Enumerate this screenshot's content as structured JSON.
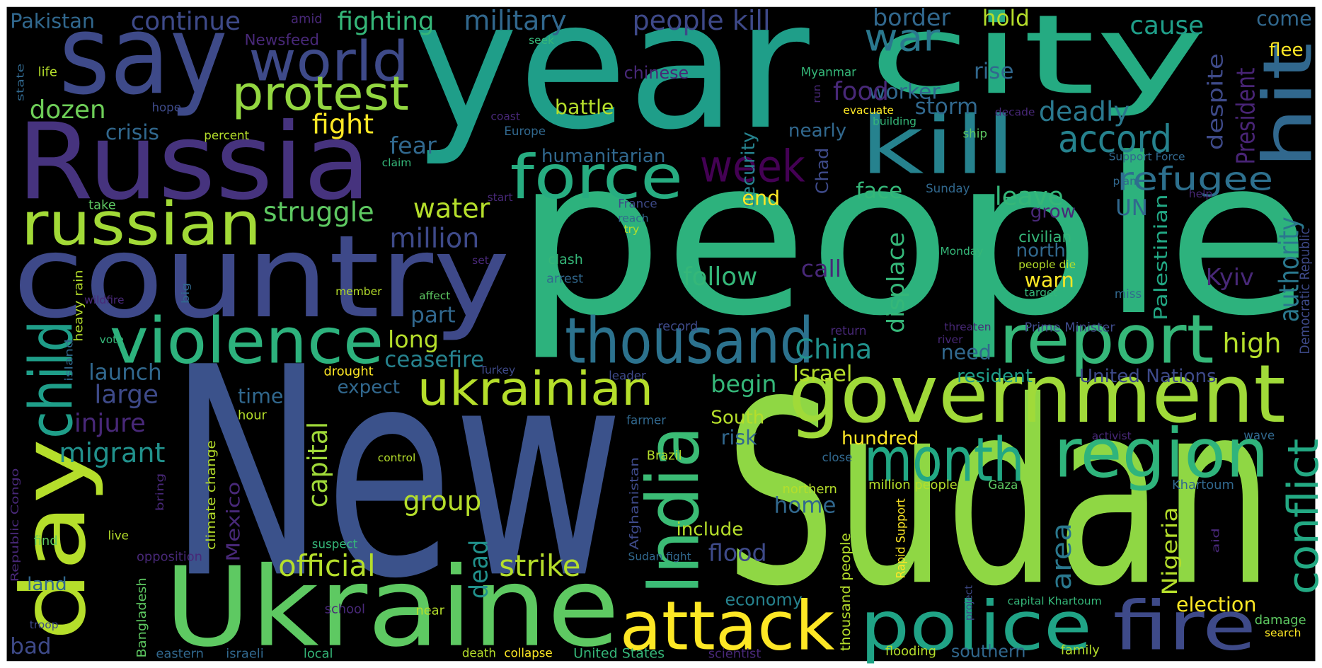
{
  "words": [
    {
      "text": "year",
      "color": "#1f9e89"
    },
    {
      "text": "people",
      "color": "#2db27d"
    },
    {
      "text": "New",
      "color": "#3b528b"
    },
    {
      "text": "Sudan",
      "color": "#8fd744"
    },
    {
      "text": "say",
      "color": "#3e4a89"
    },
    {
      "text": "city",
      "color": "#25ab82"
    },
    {
      "text": "Russia",
      "color": "#46337e"
    },
    {
      "text": "country",
      "color": "#3e4989"
    },
    {
      "text": "kill",
      "color": "#26828e"
    },
    {
      "text": "government",
      "color": "#a0da39"
    },
    {
      "text": "region",
      "color": "#2fb47c"
    },
    {
      "text": "month",
      "color": "#22a884"
    },
    {
      "text": "report",
      "color": "#35b779"
    },
    {
      "text": "thousand",
      "color": "#2c728e"
    },
    {
      "text": "violence",
      "color": "#2db27d"
    },
    {
      "text": "russian",
      "color": "#a2da37"
    },
    {
      "text": "world",
      "color": "#3e4a89"
    },
    {
      "text": "protest",
      "color": "#93d741"
    },
    {
      "text": "war",
      "color": "#2a788e"
    },
    {
      "text": "force",
      "color": "#27ad81"
    },
    {
      "text": "week",
      "color": "#440154"
    },
    {
      "text": "accord",
      "color": "#26828e"
    },
    {
      "text": "refugee",
      "color": "#2d708e"
    },
    {
      "text": "ukrainian",
      "color": "#b5de2b"
    },
    {
      "text": "Ukraine",
      "color": "#5ec962"
    },
    {
      "text": "attack",
      "color": "#fde725"
    },
    {
      "text": "police",
      "color": "#20a386"
    },
    {
      "text": "fire",
      "color": "#3e4a89"
    },
    {
      "text": "hit",
      "color": "#31688e"
    },
    {
      "text": "day",
      "color": "#b5de2b"
    },
    {
      "text": "child",
      "color": "#1f9e89"
    },
    {
      "text": "India",
      "color": "#3bbb75"
    },
    {
      "text": "conflict",
      "color": "#23a983"
    },
    {
      "text": "authority",
      "color": "#2a788e"
    },
    {
      "text": "President",
      "color": "#482475"
    },
    {
      "text": "despite",
      "color": "#3e4a89"
    },
    {
      "text": "displace",
      "color": "#35b779"
    },
    {
      "text": "capital",
      "color": "#a0da39"
    },
    {
      "text": "dead",
      "color": "#21918c"
    },
    {
      "text": "area",
      "color": "#2a788e"
    },
    {
      "text": "Nigeria",
      "color": "#b5de2b"
    },
    {
      "text": "Palestinian",
      "color": "#22a884"
    },
    {
      "text": "Democratic Republic",
      "color": "#3e4a89"
    },
    {
      "text": "Mexico",
      "color": "#482878"
    },
    {
      "text": "Chad",
      "color": "#3e4a89"
    },
    {
      "text": "security",
      "color": "#26828e"
    },
    {
      "text": "thousand people",
      "color": "#b5de2b"
    },
    {
      "text": "Rapid Support",
      "color": "#fde725"
    },
    {
      "text": "Afghanistan",
      "color": "#3e4a89"
    },
    {
      "text": "climate change",
      "color": "#b5de2b"
    },
    {
      "text": "Bangladesh",
      "color": "#5ec962"
    },
    {
      "text": "heavy rain",
      "color": "#b5de2b"
    },
    {
      "text": "Republic Congo",
      "color": "#482878"
    },
    {
      "text": "island",
      "color": "#31688e"
    },
    {
      "text": "bring",
      "color": "#482878"
    },
    {
      "text": "big",
      "color": "#31688e"
    },
    {
      "text": "state",
      "color": "#31688e"
    },
    {
      "text": "run",
      "color": "#482878"
    },
    {
      "text": "project",
      "color": "#3e4a89"
    },
    {
      "text": "aid",
      "color": "#482878"
    },
    {
      "text": "Pakistan",
      "color": "#31688e"
    },
    {
      "text": "continue",
      "color": "#3e4a89"
    },
    {
      "text": "fighting",
      "color": "#35b779"
    },
    {
      "text": "military",
      "color": "#31688e"
    },
    {
      "text": "people kill",
      "color": "#3e4989"
    },
    {
      "text": "border",
      "color": "#31688e"
    },
    {
      "text": "hold",
      "color": "#b5de2b"
    },
    {
      "text": "cause",
      "color": "#1f9e89"
    },
    {
      "text": "come",
      "color": "#31688e"
    },
    {
      "text": "flee",
      "color": "#fde725"
    },
    {
      "text": "amid",
      "color": "#482878"
    },
    {
      "text": "Newsfeed",
      "color": "#482878"
    },
    {
      "text": "seek",
      "color": "#35b779"
    },
    {
      "text": "life",
      "color": "#b5de2b"
    },
    {
      "text": "Myanmar",
      "color": "#35b779"
    },
    {
      "text": "worker",
      "color": "#31688e"
    },
    {
      "text": "rise",
      "color": "#31688e"
    },
    {
      "text": "chinese",
      "color": "#482878"
    },
    {
      "text": "food",
      "color": "#482878"
    },
    {
      "text": "dozen",
      "color": "#6ece58"
    },
    {
      "text": "hope",
      "color": "#3e4a89"
    },
    {
      "text": "crisis",
      "color": "#31688e"
    },
    {
      "text": "percent",
      "color": "#b5de2b"
    },
    {
      "text": "battle",
      "color": "#b5de2b"
    },
    {
      "text": "fight",
      "color": "#fde725"
    },
    {
      "text": "storm",
      "color": "#31688e"
    },
    {
      "text": "deadly",
      "color": "#2a788e"
    },
    {
      "text": "coast",
      "color": "#482878"
    },
    {
      "text": "evacuate",
      "color": "#fde725"
    },
    {
      "text": "decade",
      "color": "#482878"
    },
    {
      "text": "building",
      "color": "#35b779"
    },
    {
      "text": "Europe",
      "color": "#31688e"
    },
    {
      "text": "nearly",
      "color": "#31688e"
    },
    {
      "text": "ship",
      "color": "#5ec962"
    },
    {
      "text": "fear",
      "color": "#31688e"
    },
    {
      "text": "claim",
      "color": "#35b779"
    },
    {
      "text": "humanitarian",
      "color": "#31688e"
    },
    {
      "text": "Support Force",
      "color": "#31688e"
    },
    {
      "text": "Sunday",
      "color": "#31688e"
    },
    {
      "text": "face",
      "color": "#35b779"
    },
    {
      "text": "leave",
      "color": "#35b779"
    },
    {
      "text": "end",
      "color": "#fde725"
    },
    {
      "text": "plan",
      "color": "#31688e"
    },
    {
      "text": "help",
      "color": "#482878"
    },
    {
      "text": "grow",
      "color": "#482878"
    },
    {
      "text": "UN",
      "color": "#31688e"
    },
    {
      "text": "take",
      "color": "#5ec962"
    },
    {
      "text": "start",
      "color": "#482878"
    },
    {
      "text": "France",
      "color": "#3e4a89"
    },
    {
      "text": "struggle",
      "color": "#5ec962"
    },
    {
      "text": "water",
      "color": "#b5de2b"
    },
    {
      "text": "reach",
      "color": "#31688e"
    },
    {
      "text": "try",
      "color": "#b5de2b"
    },
    {
      "text": "million",
      "color": "#3e4a89"
    },
    {
      "text": "civilian",
      "color": "#35b779"
    },
    {
      "text": "north",
      "color": "#31688e"
    },
    {
      "text": "Monday",
      "color": "#35b779"
    },
    {
      "text": "set",
      "color": "#482878"
    },
    {
      "text": "clash",
      "color": "#35b779"
    },
    {
      "text": "follow",
      "color": "#35b779"
    },
    {
      "text": "call",
      "color": "#482878"
    },
    {
      "text": "people die",
      "color": "#b5de2b"
    },
    {
      "text": "Kyiv",
      "color": "#482878"
    },
    {
      "text": "warn",
      "color": "#fde725"
    },
    {
      "text": "arrest",
      "color": "#31688e"
    },
    {
      "text": "member",
      "color": "#b5de2b"
    },
    {
      "text": "affect",
      "color": "#5ec962"
    },
    {
      "text": "target",
      "color": "#35b779"
    },
    {
      "text": "miss",
      "color": "#31688e"
    },
    {
      "text": "part",
      "color": "#31688e"
    },
    {
      "text": "wildfire",
      "color": "#482878"
    },
    {
      "text": "record",
      "color": "#3e4a89"
    },
    {
      "text": "return",
      "color": "#482878"
    },
    {
      "text": "threaten",
      "color": "#482878"
    },
    {
      "text": "Prime Minister",
      "color": "#3e4a89"
    },
    {
      "text": "vote",
      "color": "#35b779"
    },
    {
      "text": "river",
      "color": "#482878"
    },
    {
      "text": "long",
      "color": "#b5de2b"
    },
    {
      "text": "China",
      "color": "#21918c"
    },
    {
      "text": "high",
      "color": "#b5de2b"
    },
    {
      "text": "ceasefire",
      "color": "#26828e"
    },
    {
      "text": "need",
      "color": "#31688e"
    },
    {
      "text": "launch",
      "color": "#31688e"
    },
    {
      "text": "drought",
      "color": "#fde725"
    },
    {
      "text": "Turkey",
      "color": "#3e4a89"
    },
    {
      "text": "leader",
      "color": "#3e4a89"
    },
    {
      "text": "Israel",
      "color": "#b5de2b"
    },
    {
      "text": "resident",
      "color": "#1f9e89"
    },
    {
      "text": "United Nations",
      "color": "#3e4a89"
    },
    {
      "text": "expect",
      "color": "#31688e"
    },
    {
      "text": "begin",
      "color": "#35b779"
    },
    {
      "text": "large",
      "color": "#3e4a89"
    },
    {
      "text": "time",
      "color": "#31688e"
    },
    {
      "text": "injure",
      "color": "#482878"
    },
    {
      "text": "hour",
      "color": "#b5de2b"
    },
    {
      "text": "South",
      "color": "#b5de2b"
    },
    {
      "text": "farmer",
      "color": "#31688e"
    },
    {
      "text": "risk",
      "color": "#31688e"
    },
    {
      "text": "hundred",
      "color": "#fde725"
    },
    {
      "text": "activist",
      "color": "#482878"
    },
    {
      "text": "wave",
      "color": "#31688e"
    },
    {
      "text": "migrant",
      "color": "#21918c"
    },
    {
      "text": "control",
      "color": "#b5de2b"
    },
    {
      "text": "Brazil",
      "color": "#b5de2b"
    },
    {
      "text": "close",
      "color": "#31688e"
    },
    {
      "text": "group",
      "color": "#b5de2b"
    },
    {
      "text": "million people",
      "color": "#b5de2b"
    },
    {
      "text": "Gaza",
      "color": "#5ec962"
    },
    {
      "text": "northern",
      "color": "#b5de2b"
    },
    {
      "text": "Khartoum",
      "color": "#31688e"
    },
    {
      "text": "home",
      "color": "#31688e"
    },
    {
      "text": "include",
      "color": "#b5de2b"
    },
    {
      "text": "find",
      "color": "#5ec962"
    },
    {
      "text": "live",
      "color": "#b5de2b"
    },
    {
      "text": "suspect",
      "color": "#35b779"
    },
    {
      "text": "flood",
      "color": "#3e4a89"
    },
    {
      "text": "opposition",
      "color": "#482878"
    },
    {
      "text": "Sudan fight",
      "color": "#31688e"
    },
    {
      "text": "official",
      "color": "#b5de2b"
    },
    {
      "text": "strike",
      "color": "#b5de2b"
    },
    {
      "text": "land",
      "color": "#31688e"
    },
    {
      "text": "economy",
      "color": "#26828e"
    },
    {
      "text": "election",
      "color": "#fde725"
    },
    {
      "text": "school",
      "color": "#482878"
    },
    {
      "text": "near",
      "color": "#b5de2b"
    },
    {
      "text": "capital Khartoum",
      "color": "#35b779"
    },
    {
      "text": "damage",
      "color": "#5ec962"
    },
    {
      "text": "troop",
      "color": "#3e4a89"
    },
    {
      "text": "search",
      "color": "#fde725"
    },
    {
      "text": "bad",
      "color": "#3e4a89"
    },
    {
      "text": "eastern",
      "color": "#31688e"
    },
    {
      "text": "israeli",
      "color": "#31688e"
    },
    {
      "text": "local",
      "color": "#35b779"
    },
    {
      "text": "death",
      "color": "#b5de2b"
    },
    {
      "text": "collapse",
      "color": "#fde725"
    },
    {
      "text": "United States",
      "color": "#35b779"
    },
    {
      "text": "scientist",
      "color": "#482878"
    },
    {
      "text": "flooding",
      "color": "#b5de2b"
    },
    {
      "text": "southern",
      "color": "#31688e"
    },
    {
      "text": "family",
      "color": "#b5de2b"
    }
  ]
}
